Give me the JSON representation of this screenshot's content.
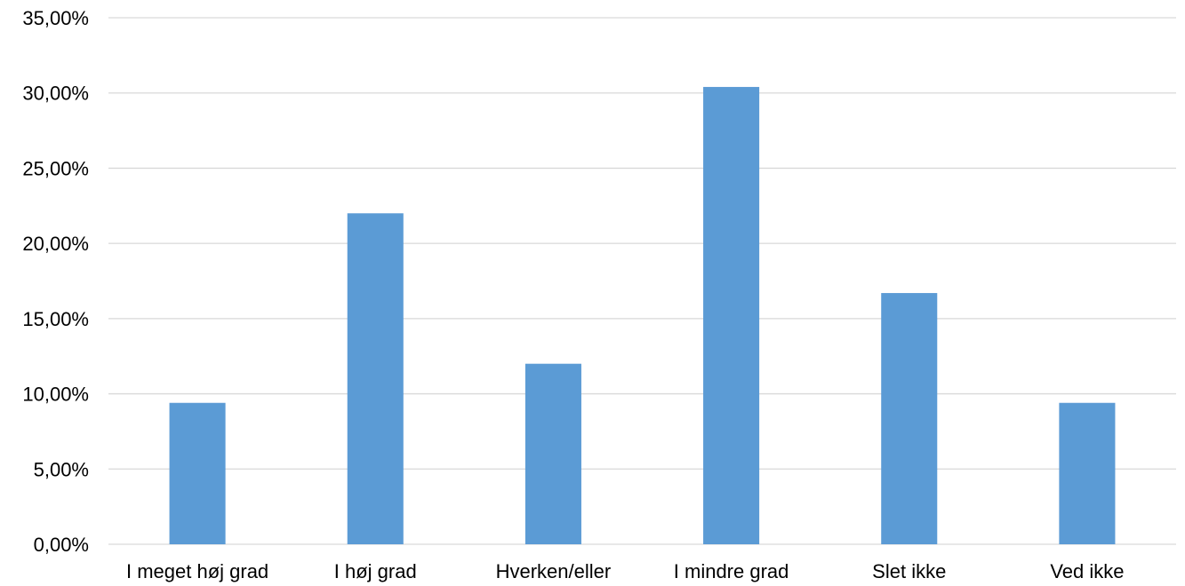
{
  "chart_data": {
    "type": "bar",
    "categories": [
      "I meget høj grad",
      "I høj grad",
      "Hverken/eller",
      "I mindre grad",
      "Slet ikke",
      "Ved ikke"
    ],
    "values": [
      9.4,
      22.0,
      12.0,
      30.4,
      16.7,
      9.4
    ],
    "ylim": [
      0,
      35
    ],
    "yticks": [
      "0,00%",
      "5,00%",
      "10,00%",
      "15,00%",
      "20,00%",
      "25,00%",
      "30,00%",
      "35,00%"
    ],
    "ytick_values": [
      0,
      5,
      10,
      15,
      20,
      25,
      30,
      35
    ],
    "grid": true,
    "legend": false,
    "bar_color": "#5b9bd5",
    "grid_color": "#d9d9d9"
  }
}
